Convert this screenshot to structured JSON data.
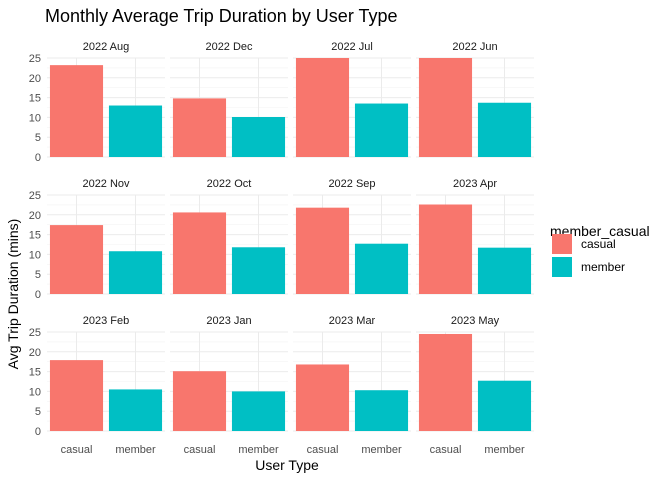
{
  "chart_data": {
    "type": "bar",
    "title": "Monthly Average Trip Duration by User Type",
    "xlabel": "User Type",
    "ylabel": "Avg Trip Duration (mins)",
    "categories": [
      "casual",
      "member"
    ],
    "ylim": [
      0,
      25
    ],
    "yticks": [
      0,
      5,
      10,
      15,
      20,
      25
    ],
    "grid": true,
    "legend": {
      "title": "member_casual",
      "position": "right",
      "entries": [
        {
          "name": "casual",
          "color": "#F8766D"
        },
        {
          "name": "member",
          "color": "#00BFC4"
        }
      ]
    },
    "facets": [
      {
        "label": "2022 Aug",
        "values": [
          23.2,
          13.0
        ]
      },
      {
        "label": "2022 Dec",
        "values": [
          14.8,
          10.1
        ]
      },
      {
        "label": "2022 Jul",
        "values": [
          25.0,
          13.5
        ]
      },
      {
        "label": "2022 Jun",
        "values": [
          25.0,
          13.7
        ]
      },
      {
        "label": "2022 Nov",
        "values": [
          17.4,
          10.8
        ]
      },
      {
        "label": "2022 Oct",
        "values": [
          20.6,
          11.8
        ]
      },
      {
        "label": "2022 Sep",
        "values": [
          21.8,
          12.7
        ]
      },
      {
        "label": "2023 Apr",
        "values": [
          22.6,
          11.7
        ]
      },
      {
        "label": "2023 Feb",
        "values": [
          17.9,
          10.5
        ]
      },
      {
        "label": "2023 Jan",
        "values": [
          15.1,
          10.0
        ]
      },
      {
        "label": "2023 Mar",
        "values": [
          16.8,
          10.3
        ]
      },
      {
        "label": "2023 May",
        "values": [
          24.5,
          12.7
        ]
      }
    ]
  }
}
